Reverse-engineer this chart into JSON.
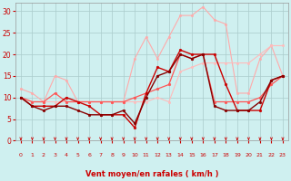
{
  "x": [
    0,
    1,
    2,
    3,
    4,
    5,
    6,
    7,
    8,
    9,
    10,
    11,
    12,
    13,
    14,
    15,
    16,
    17,
    18,
    19,
    20,
    21,
    22,
    23
  ],
  "series": [
    {
      "color": "#ffaaaa",
      "linewidth": 0.8,
      "marker": "o",
      "markersize": 1.8,
      "y": [
        12,
        11,
        9,
        15,
        14,
        9,
        9,
        9,
        9,
        9,
        19,
        24,
        19,
        24,
        29,
        29,
        31,
        28,
        27,
        11,
        11,
        19,
        22,
        15
      ]
    },
    {
      "color": "#ffbbbb",
      "linewidth": 0.8,
      "marker": "o",
      "markersize": 1.8,
      "y": [
        10,
        9,
        9,
        9,
        9,
        9,
        9,
        9,
        9,
        9,
        9,
        9,
        10,
        9,
        16,
        17,
        18,
        18,
        18,
        18,
        18,
        20,
        22,
        22
      ]
    },
    {
      "color": "#ff5555",
      "linewidth": 0.9,
      "marker": "o",
      "markersize": 2.0,
      "y": [
        10,
        9,
        9,
        11,
        9,
        9,
        9,
        9,
        9,
        9,
        10,
        11,
        12,
        13,
        20,
        19,
        20,
        9,
        9,
        9,
        9,
        10,
        13,
        15
      ]
    },
    {
      "color": "#cc0000",
      "linewidth": 1.0,
      "marker": "o",
      "markersize": 2.0,
      "y": [
        10,
        8,
        8,
        8,
        10,
        9,
        8,
        6,
        6,
        6,
        3,
        11,
        17,
        16,
        21,
        20,
        20,
        20,
        13,
        7,
        7,
        7,
        14,
        15
      ]
    },
    {
      "color": "#880000",
      "linewidth": 1.0,
      "marker": "o",
      "markersize": 2.0,
      "y": [
        10,
        8,
        7,
        8,
        8,
        7,
        6,
        6,
        6,
        7,
        4,
        10,
        15,
        16,
        20,
        19,
        20,
        8,
        7,
        7,
        7,
        9,
        14,
        15
      ]
    }
  ],
  "xlabel": "Vent moyen/en rafales ( km/h )",
  "xlim": [
    -0.5,
    23.5
  ],
  "ylim": [
    0,
    32
  ],
  "yticks": [
    0,
    5,
    10,
    15,
    20,
    25,
    30
  ],
  "xticks": [
    0,
    1,
    2,
    3,
    4,
    5,
    6,
    7,
    8,
    9,
    10,
    11,
    12,
    13,
    14,
    15,
    16,
    17,
    18,
    19,
    20,
    21,
    22,
    23
  ],
  "bg_color": "#cff0f0",
  "grid_color": "#aacccc",
  "xlabel_color": "#cc0000",
  "tick_color": "#cc0000",
  "arrow_color": "#cc0000",
  "figsize": [
    3.2,
    2.0
  ],
  "dpi": 100
}
